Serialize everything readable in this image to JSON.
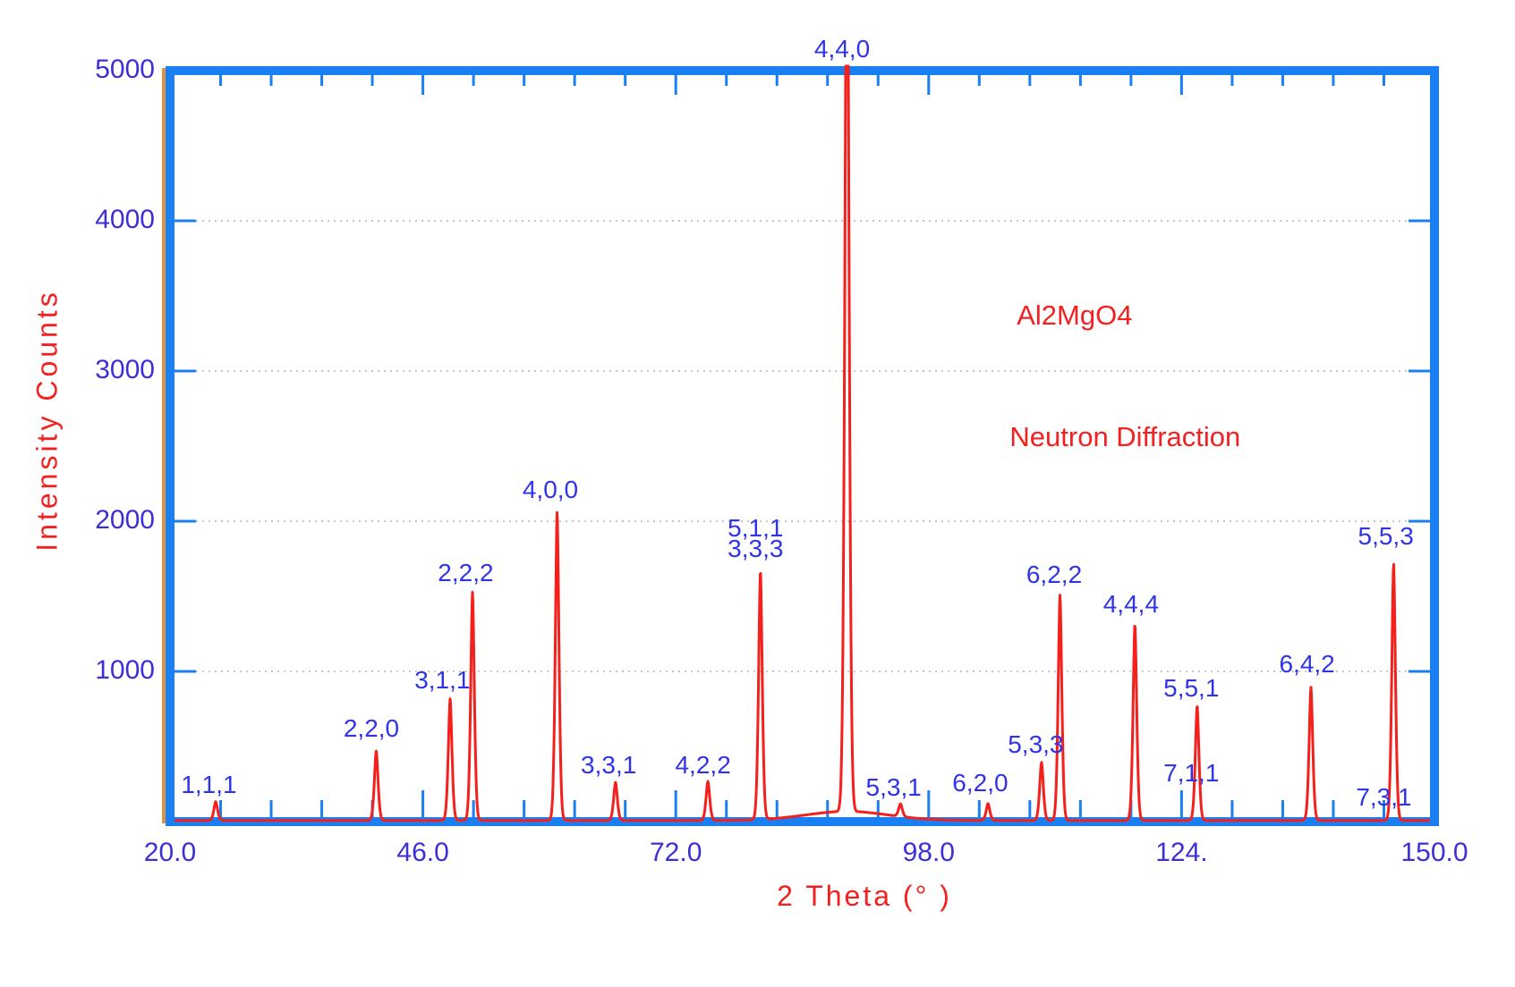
{
  "chart_data": {
    "type": "line",
    "title": "",
    "xlabel": "2 Theta (° )",
    "ylabel": "Intensity Counts",
    "xlim": [
      20,
      150
    ],
    "ylim": [
      0,
      5000
    ],
    "x_axis": {
      "major_ticks": [
        {
          "value": 20,
          "label": "20.0"
        },
        {
          "value": 46,
          "label": "46.0"
        },
        {
          "value": 72,
          "label": "72.0"
        },
        {
          "value": 98,
          "label": "98.0"
        },
        {
          "value": 124,
          "label": "124."
        },
        {
          "value": 150,
          "label": "150.0"
        }
      ],
      "minor_tick_step": 5.2
    },
    "y_axis": {
      "tick_labels": [
        {
          "value": 5000,
          "label": "5000"
        },
        {
          "value": 4000,
          "label": "4000"
        },
        {
          "value": 3000,
          "label": "3000"
        },
        {
          "value": 2000,
          "label": "2000"
        },
        {
          "value": 1000,
          "label": "1000"
        }
      ],
      "gridlines": [
        1000,
        2000,
        3000,
        4000
      ]
    },
    "annotations": [
      {
        "text": "Al2MgO4",
        "theta": 113.0,
        "counts": 3368
      },
      {
        "text": "Neutron Diffraction",
        "theta": 118.2,
        "counts": 2561
      }
    ],
    "baseline_counts": 8,
    "colors": {
      "frame": "#1a7ff2",
      "curve": "#f3201c",
      "peak_label": "#3034e8",
      "tick_label": "#3c2fd8",
      "red_text": "#f32020",
      "gridline": "#c6c6c6",
      "axis_accent_orange": "#dd9440"
    },
    "peaks": [
      {
        "hkl": "1,1,1",
        "two_theta": 24.7,
        "intensity": 125,
        "labels": [
          {
            "text": "1,1,1",
            "theta": 24.0,
            "counts": 246
          }
        ]
      },
      {
        "hkl": "2,2,0",
        "two_theta": 41.2,
        "intensity": 462,
        "labels": [
          {
            "text": "2,2,0",
            "theta": 40.7,
            "counts": 620
          }
        ]
      },
      {
        "hkl": "3,1,1",
        "two_theta": 48.8,
        "intensity": 810,
        "labels": [
          {
            "text": "3,1,1",
            "theta": 48.0,
            "counts": 941
          }
        ]
      },
      {
        "hkl": "2,2,2",
        "two_theta": 51.1,
        "intensity": 1520,
        "labels": [
          {
            "text": "2,2,2",
            "theta": 50.4,
            "counts": 1653
          }
        ]
      },
      {
        "hkl": "4,0,0",
        "two_theta": 59.8,
        "intensity": 2055,
        "labels": [
          {
            "text": "4,0,0",
            "theta": 59.1,
            "counts": 2211
          }
        ]
      },
      {
        "hkl": "3,3,1",
        "two_theta": 65.8,
        "intensity": 255,
        "labels": [
          {
            "text": "3,3,1",
            "theta": 65.1,
            "counts": 377
          }
        ]
      },
      {
        "hkl": "4,2,2",
        "two_theta": 75.3,
        "intensity": 260,
        "labels": [
          {
            "text": "4,2,2",
            "theta": 74.8,
            "counts": 377
          }
        ]
      },
      {
        "hkl": "5,1,1 / 3,3,3",
        "two_theta": 80.7,
        "intensity": 1660,
        "labels": [
          {
            "text": "5,1,1",
            "theta": 80.2,
            "counts": 1950
          },
          {
            "text": "3,3,3",
            "theta": 80.2,
            "counts": 1814
          }
        ]
      },
      {
        "hkl": "4,4,0",
        "two_theta": 89.6,
        "intensity": 6500,
        "clipped_at": 5000,
        "sigma_deg": 0.3,
        "broad_base": {
          "amp": 60,
          "sigma_deg": 6.0
        },
        "labels": [
          {
            "text": "4,4,0",
            "theta": 89.1,
            "counts": 5140
          }
        ]
      },
      {
        "hkl": "5,3,1",
        "two_theta": 95.1,
        "intensity": 85,
        "labels": [
          {
            "text": "5,3,1",
            "theta": 94.4,
            "counts": 229
          }
        ]
      },
      {
        "hkl": "6,2,0",
        "two_theta": 104.1,
        "intensity": 112,
        "labels": [
          {
            "text": "6,2,0",
            "theta": 103.3,
            "counts": 258
          }
        ]
      },
      {
        "hkl": "5,3,3",
        "two_theta": 109.6,
        "intensity": 388,
        "labels": [
          {
            "text": "5,3,3",
            "theta": 109.0,
            "counts": 513
          }
        ]
      },
      {
        "hkl": "6,2,2",
        "two_theta": 111.5,
        "intensity": 1500,
        "labels": [
          {
            "text": "6,2,2",
            "theta": 110.9,
            "counts": 1641
          }
        ]
      },
      {
        "hkl": "4,4,4",
        "two_theta": 119.2,
        "intensity": 1310,
        "labels": [
          {
            "text": "4,4,4",
            "theta": 118.8,
            "counts": 1445
          }
        ]
      },
      {
        "hkl": "5,5,1 / 7,1,1",
        "two_theta": 125.6,
        "intensity": 765,
        "labels": [
          {
            "text": "5,5,1",
            "theta": 125.0,
            "counts": 887
          },
          {
            "text": "7,1,1",
            "theta": 125.0,
            "counts": 324
          }
        ]
      },
      {
        "hkl": "6,4,2",
        "two_theta": 137.3,
        "intensity": 888,
        "labels": [
          {
            "text": "6,4,2",
            "theta": 136.9,
            "counts": 1048
          }
        ]
      },
      {
        "hkl": "5,5,3 / 7,3,1",
        "two_theta": 145.8,
        "intensity": 1715,
        "labels": [
          {
            "text": "5,5,3",
            "theta": 145.0,
            "counts": 1897
          },
          {
            "text": "7,3,1",
            "theta": 144.8,
            "counts": 163
          }
        ]
      }
    ]
  }
}
